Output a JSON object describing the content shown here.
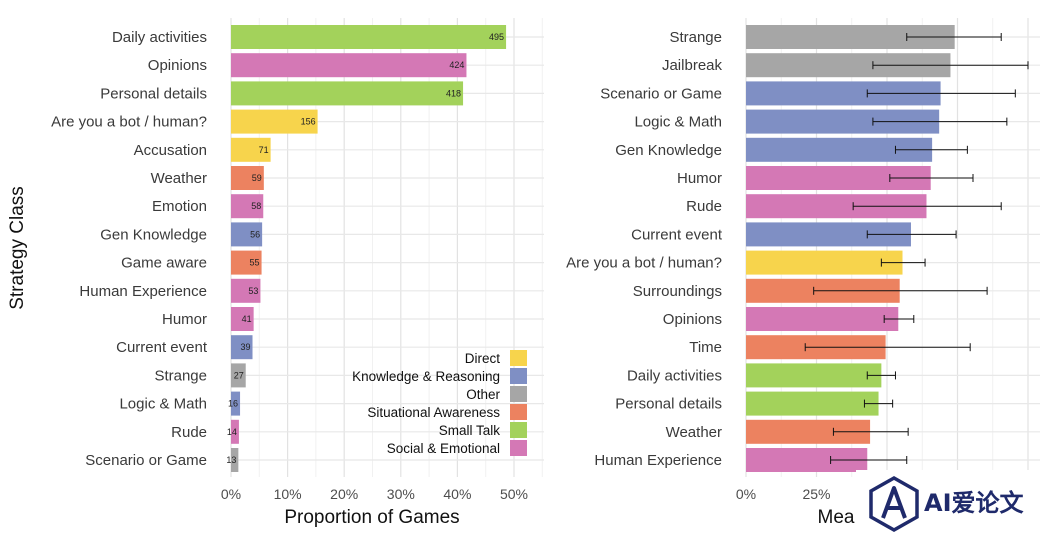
{
  "chart_data": [
    {
      "type": "bar",
      "orientation": "horizontal",
      "ylabel": "Strategy Class",
      "xlabel": "Proportion of Games",
      "x_ticks": [
        "0%",
        "10%",
        "20%",
        "30%",
        "40%",
        "50%"
      ],
      "xlim": [
        0,
        0.5
      ],
      "grid": true,
      "legend_position": "bottom-right",
      "legend": [
        {
          "name": "Direct",
          "color": "#f7d44c"
        },
        {
          "name": "Knowledge & Reasoning",
          "color": "#7f8fc4"
        },
        {
          "name": "Other",
          "color": "#a6a6a6"
        },
        {
          "name": "Situational Awareness",
          "color": "#ec8260"
        },
        {
          "name": "Small Talk",
          "color": "#a3d25b"
        },
        {
          "name": "Social & Emotional",
          "color": "#d478b5"
        }
      ],
      "categories": [
        "Daily activities",
        "Opinions",
        "Personal details",
        "Are you a bot / human?",
        "Accusation",
        "Weather",
        "Emotion",
        "Gen Knowledge",
        "Game aware",
        "Human Experience",
        "Humor",
        "Current event",
        "Strange",
        "Logic & Math",
        "Rude",
        "Scenario or Game"
      ],
      "counts": [
        495,
        424,
        418,
        156,
        71,
        59,
        58,
        56,
        55,
        53,
        41,
        39,
        27,
        16,
        14,
        13
      ],
      "values": [
        0.486,
        0.416,
        0.41,
        0.153,
        0.07,
        0.058,
        0.057,
        0.055,
        0.054,
        0.052,
        0.04,
        0.038,
        0.026,
        0.016,
        0.014,
        0.013
      ],
      "groups": [
        "Small Talk",
        "Social & Emotional",
        "Small Talk",
        "Direct",
        "Direct",
        "Situational Awareness",
        "Social & Emotional",
        "Knowledge & Reasoning",
        "Situational Awareness",
        "Social & Emotional",
        "Social & Emotional",
        "Knowledge & Reasoning",
        "Other",
        "Knowledge & Reasoning",
        "Social & Emotional",
        "Other"
      ]
    },
    {
      "type": "bar",
      "orientation": "horizontal",
      "xlabel": "Mea",
      "x_ticks": [
        "0%",
        "25%"
      ],
      "xlim": [
        0,
        1.0
      ],
      "grid": true,
      "categories": [
        "Strange",
        "Jailbreak",
        "Scenario or Game",
        "Logic & Math",
        "Gen Knowledge",
        "Humor",
        "Rude",
        "Current event",
        "Are you a bot / human?",
        "Surroundings",
        "Opinions",
        "Time",
        "Daily activities",
        "Personal details",
        "Weather",
        "Human Experience"
      ],
      "values": [
        0.74,
        0.725,
        0.69,
        0.685,
        0.66,
        0.655,
        0.64,
        0.585,
        0.555,
        0.545,
        0.54,
        0.495,
        0.48,
        0.47,
        0.44,
        0.43
      ],
      "error_low": [
        0.57,
        0.45,
        0.43,
        0.45,
        0.53,
        0.51,
        0.38,
        0.43,
        0.48,
        0.24,
        0.49,
        0.21,
        0.43,
        0.42,
        0.31,
        0.3
      ],
      "error_high": [
        0.905,
        1.0,
        0.955,
        0.925,
        0.785,
        0.805,
        0.905,
        0.745,
        0.635,
        0.855,
        0.595,
        0.795,
        0.53,
        0.52,
        0.575,
        0.57
      ],
      "groups": [
        "Other",
        "Other",
        "Knowledge & Reasoning",
        "Knowledge & Reasoning",
        "Knowledge & Reasoning",
        "Social & Emotional",
        "Social & Emotional",
        "Knowledge & Reasoning",
        "Direct",
        "Situational Awareness",
        "Social & Emotional",
        "Situational Awareness",
        "Small Talk",
        "Small Talk",
        "Situational Awareness",
        "Social & Emotional"
      ]
    }
  ],
  "watermark": {
    "text": "AI爱论文"
  }
}
